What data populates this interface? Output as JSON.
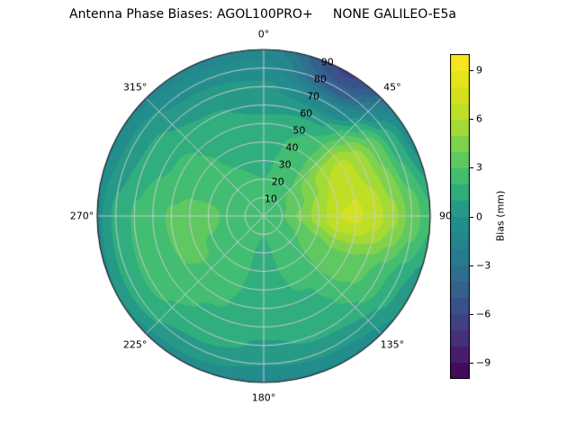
{
  "chart_data": {
    "type": "polar_contour",
    "title": "Antenna Phase Biases: AGOL100PRO+     NONE GALILEO-E5a",
    "angular_ticks": [
      {
        "angle": 0,
        "label": "0°"
      },
      {
        "angle": 45,
        "label": "45°"
      },
      {
        "angle": 90,
        "label": "90"
      },
      {
        "angle": 135,
        "label": "135°"
      },
      {
        "angle": 180,
        "label": "180°"
      },
      {
        "angle": 225,
        "label": "225°"
      },
      {
        "angle": 270,
        "label": "270°"
      },
      {
        "angle": 315,
        "label": "315°"
      }
    ],
    "radial_ticks": [
      10,
      20,
      30,
      40,
      50,
      60,
      70,
      80,
      90
    ],
    "radial_max": 90,
    "radial_label_azimuth_deg": 22.5,
    "grid_on": true,
    "level_step": 1,
    "colorbar": {
      "label": "Bias (mm)",
      "vmin": -10,
      "vmax": 10,
      "ticks": [
        {
          "v": 9,
          "label": "9"
        },
        {
          "v": 6,
          "label": "6"
        },
        {
          "v": 3,
          "label": "3"
        },
        {
          "v": 0,
          "label": "0"
        },
        {
          "v": -3,
          "label": "−3"
        },
        {
          "v": -6,
          "label": "−6"
        },
        {
          "v": -9,
          "label": "−9"
        }
      ]
    },
    "colormap": {
      "name": "viridis",
      "stops": [
        [
          0.0,
          "#440154"
        ],
        [
          0.1,
          "#482878"
        ],
        [
          0.2,
          "#3e4989"
        ],
        [
          0.3,
          "#31688e"
        ],
        [
          0.4,
          "#26828e"
        ],
        [
          0.5,
          "#21918c"
        ],
        [
          0.6,
          "#35b779"
        ],
        [
          0.7,
          "#6ece58"
        ],
        [
          0.8,
          "#b5de2b"
        ],
        [
          0.9,
          "#dde318"
        ],
        [
          1.0,
          "#fde725"
        ]
      ]
    },
    "grid": {
      "azimuth_deg": [
        0,
        30,
        60,
        90,
        120,
        150,
        180,
        210,
        240,
        270,
        300,
        330,
        360
      ],
      "zenith_deg": [
        0,
        10,
        20,
        30,
        40,
        50,
        60,
        70,
        80,
        90
      ],
      "bias_mm": [
        [
          2.2,
          2.2,
          2.2,
          2.2,
          2.2,
          2.2,
          2.2,
          2.2,
          2.2,
          2.2,
          2.2,
          2.2,
          2.2
        ],
        [
          2.2,
          2.4,
          2.8,
          3.0,
          2.6,
          2.2,
          2.0,
          2.1,
          2.4,
          2.5,
          2.4,
          2.2,
          2.2
        ],
        [
          2.0,
          2.5,
          3.6,
          4.2,
          3.0,
          2.2,
          1.9,
          2.1,
          2.6,
          2.9,
          2.6,
          2.1,
          2.0
        ],
        [
          1.8,
          2.6,
          4.8,
          5.6,
          3.4,
          2.2,
          1.8,
          2.2,
          2.9,
          3.2,
          2.7,
          2.0,
          1.8
        ],
        [
          1.5,
          2.5,
          6.0,
          7.0,
          3.8,
          2.1,
          1.7,
          2.2,
          3.1,
          3.3,
          2.6,
          1.8,
          1.5
        ],
        [
          1.2,
          2.0,
          6.5,
          7.2,
          3.6,
          1.9,
          1.5,
          2.1,
          3.0,
          3.1,
          2.3,
          1.5,
          1.2
        ],
        [
          0.8,
          0.8,
          5.5,
          6.5,
          3.2,
          1.6,
          1.3,
          1.9,
          2.7,
          2.7,
          1.8,
          1.1,
          0.8
        ],
        [
          0.2,
          -1.8,
          3.8,
          5.2,
          2.4,
          1.2,
          0.9,
          1.5,
          2.2,
          2.1,
          1.2,
          0.5,
          0.2
        ],
        [
          -0.6,
          -4.8,
          1.6,
          3.6,
          1.2,
          0.2,
          0.0,
          0.7,
          1.4,
          1.2,
          0.3,
          -0.3,
          -0.6
        ],
        [
          -1.5,
          -6.2,
          -0.5,
          2.2,
          0.2,
          -1.0,
          -1.2,
          -0.5,
          0.0,
          -0.2,
          -1.0,
          -1.4,
          -1.5
        ]
      ]
    }
  }
}
